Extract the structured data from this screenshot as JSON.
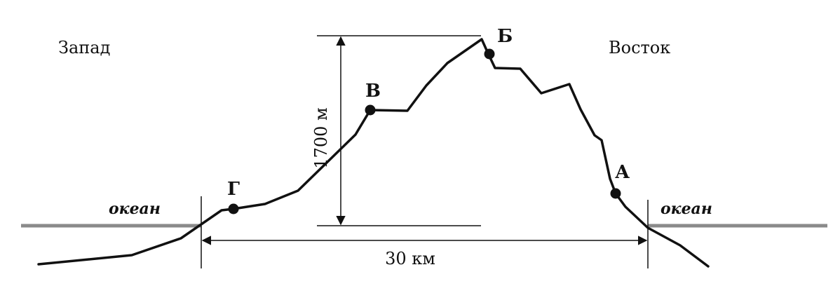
{
  "labels": {
    "west": "Запад",
    "east": "Восток",
    "ocean_left": "океан",
    "ocean_right": "океан",
    "height_dimension": "1700 м",
    "width_dimension": "30 км"
  },
  "points": [
    {
      "id": "A",
      "label": "А"
    },
    {
      "id": "B",
      "label": "Б"
    },
    {
      "id": "V",
      "label": "В"
    },
    {
      "id": "G",
      "label": "Г"
    }
  ],
  "colors": {
    "profile": "#111111",
    "sea_level": "#8a8a8a",
    "guides": "#111111"
  }
}
